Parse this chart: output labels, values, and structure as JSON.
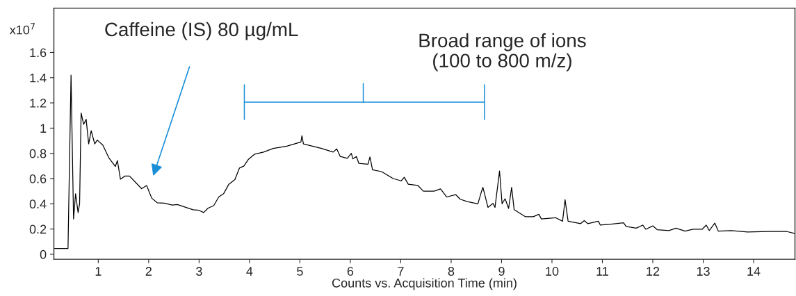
{
  "chart_data": {
    "type": "line",
    "xlabel": "Counts vs. Acquisition Time (min)",
    "xlim": [
      0.12,
      14.82
    ],
    "xticks": [
      1,
      2,
      3,
      4,
      5,
      6,
      7,
      8,
      9,
      10,
      11,
      12,
      13,
      14
    ],
    "ylim": [
      -0.04,
      1.95
    ],
    "yticks": [
      0,
      0.2,
      0.4,
      0.6,
      0.8,
      1,
      1.2,
      1.4,
      1.6
    ],
    "grid": false,
    "marker": "none",
    "line_style": "solid",
    "annotations": [
      "x10$^{7}$",
      "Caffeine (IS) 80 µg/mL",
      "Broad range of ions\n(100 to 800 m/z)"
    ],
    "series": [
      {
        "color": "#000000",
        "x": [
          0.135,
          0.4,
          0.46,
          0.51,
          0.55,
          0.6,
          0.63,
          0.66,
          0.71,
          0.76,
          0.81,
          0.86,
          0.93,
          0.98,
          1.09,
          1.21,
          1.34,
          1.38,
          1.44,
          1.53,
          1.62,
          1.86,
          1.96,
          2.06,
          2.17,
          2.31,
          2.47,
          2.57,
          2.88,
          3.0,
          3.09,
          3.18,
          3.29,
          3.39,
          3.49,
          3.59,
          3.71,
          3.8,
          3.89,
          3.98,
          4.1,
          4.28,
          4.47,
          4.74,
          5.02,
          5.04,
          5.07,
          5.43,
          5.66,
          5.73,
          5.8,
          5.94,
          6.02,
          6.05,
          6.12,
          6.17,
          6.35,
          6.39,
          6.44,
          6.62,
          6.85,
          7.01,
          7.07,
          7.15,
          7.34,
          7.45,
          7.66,
          7.79,
          7.91,
          8.09,
          8.18,
          8.32,
          8.53,
          8.6,
          8.63,
          8.73,
          8.83,
          8.87,
          8.96,
          9.01,
          9.07,
          9.14,
          9.2,
          9.25,
          9.47,
          9.63,
          9.74,
          9.79,
          10.07,
          10.21,
          10.26,
          10.32,
          10.57,
          10.64,
          10.71,
          10.92,
          10.96,
          11.17,
          11.42,
          11.47,
          11.67,
          11.8,
          11.86,
          12.0,
          12.09,
          12.32,
          12.46,
          12.64,
          12.8,
          12.98,
          13.06,
          13.12,
          13.23,
          13.3,
          13.56,
          13.88,
          14.29,
          14.66,
          14.81
        ],
        "values": [
          0.045,
          0.045,
          1.42,
          0.28,
          0.48,
          0.33,
          0.4,
          1.12,
          1.03,
          1.07,
          0.875,
          0.98,
          0.875,
          0.905,
          0.866,
          0.765,
          0.696,
          0.743,
          0.595,
          0.62,
          0.62,
          0.52,
          0.545,
          0.445,
          0.408,
          0.405,
          0.39,
          0.394,
          0.353,
          0.348,
          0.331,
          0.366,
          0.385,
          0.454,
          0.482,
          0.555,
          0.592,
          0.683,
          0.7,
          0.753,
          0.793,
          0.81,
          0.839,
          0.857,
          0.89,
          0.94,
          0.875,
          0.839,
          0.81,
          0.835,
          0.775,
          0.76,
          0.8,
          0.756,
          0.775,
          0.72,
          0.714,
          0.771,
          0.669,
          0.655,
          0.6,
          0.582,
          0.61,
          0.555,
          0.545,
          0.5,
          0.5,
          0.518,
          0.454,
          0.473,
          0.436,
          0.418,
          0.4,
          0.495,
          0.53,
          0.372,
          0.403,
          0.372,
          0.66,
          0.4,
          0.44,
          0.363,
          0.53,
          0.353,
          0.298,
          0.298,
          0.317,
          0.28,
          0.29,
          0.262,
          0.432,
          0.262,
          0.243,
          0.267,
          0.243,
          0.262,
          0.231,
          0.238,
          0.249,
          0.22,
          0.207,
          0.231,
          0.198,
          0.225,
          0.194,
          0.188,
          0.207,
          0.183,
          0.198,
          0.198,
          0.231,
          0.188,
          0.247,
          0.183,
          0.188,
          0.176,
          0.18,
          0.18,
          0.165
        ]
      }
    ]
  }
}
